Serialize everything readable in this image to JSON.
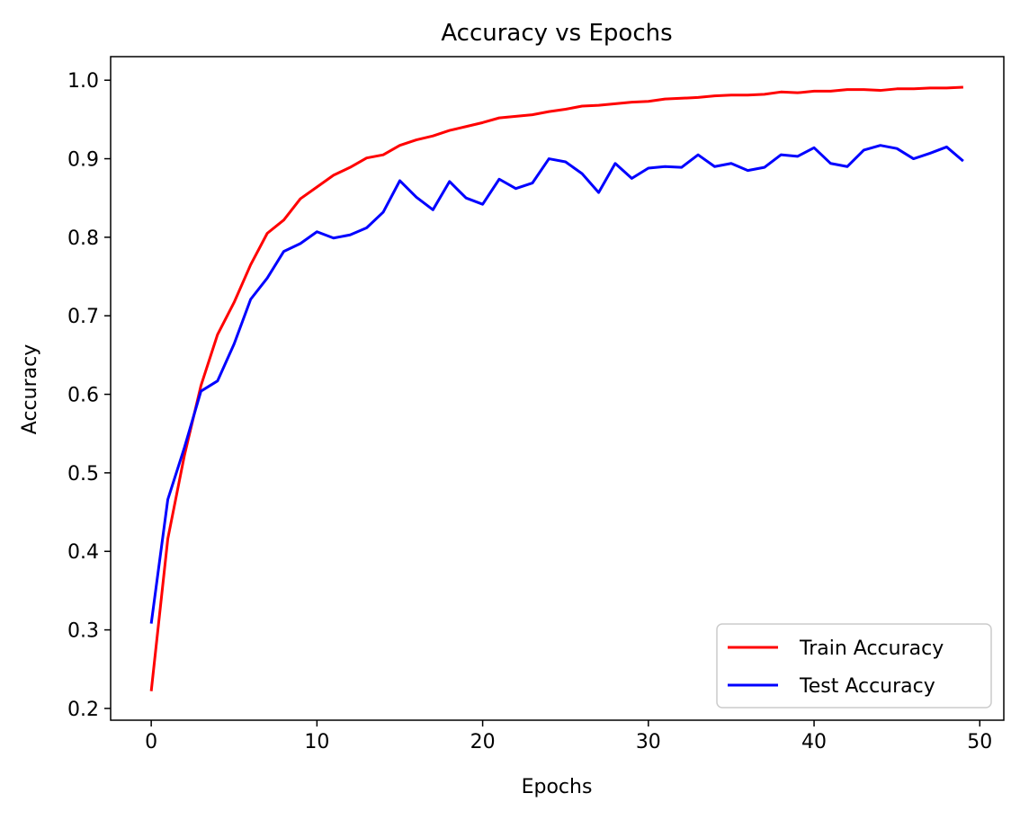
{
  "chart_data": {
    "type": "line",
    "title": "Accuracy vs Epochs",
    "xlabel": "Epochs",
    "ylabel": "Accuracy",
    "xlim": [
      -2.45,
      51.45
    ],
    "ylim": [
      0.185,
      1.03
    ],
    "xticks": [
      0,
      10,
      20,
      30,
      40,
      50
    ],
    "yticks": [
      0.2,
      0.3,
      0.4,
      0.5,
      0.6,
      0.7,
      0.8,
      0.9,
      1.0
    ],
    "ytick_labels": [
      "0.2",
      "0.3",
      "0.4",
      "0.5",
      "0.6",
      "0.7",
      "0.8",
      "0.9",
      "1.0"
    ],
    "grid": false,
    "legend_position": "lower-right",
    "x": [
      0,
      1,
      2,
      3,
      4,
      5,
      6,
      7,
      8,
      9,
      10,
      11,
      12,
      13,
      14,
      15,
      16,
      17,
      18,
      19,
      20,
      21,
      22,
      23,
      24,
      25,
      26,
      27,
      28,
      29,
      30,
      31,
      32,
      33,
      34,
      35,
      36,
      37,
      38,
      39,
      40,
      41,
      42,
      43,
      44,
      45,
      46,
      47,
      48,
      49
    ],
    "series": [
      {
        "name": "Train Accuracy",
        "color": "#ff0000",
        "values": [
          0.222,
          0.416,
          0.522,
          0.611,
          0.676,
          0.717,
          0.765,
          0.805,
          0.822,
          0.849,
          0.864,
          0.879,
          0.889,
          0.901,
          0.905,
          0.917,
          0.924,
          0.929,
          0.936,
          0.941,
          0.946,
          0.952,
          0.954,
          0.956,
          0.96,
          0.963,
          0.967,
          0.968,
          0.97,
          0.972,
          0.973,
          0.976,
          0.977,
          0.978,
          0.98,
          0.981,
          0.981,
          0.982,
          0.985,
          0.984,
          0.986,
          0.986,
          0.988,
          0.988,
          0.987,
          0.989,
          0.989,
          0.99,
          0.99,
          0.991
        ]
      },
      {
        "name": "Test Accuracy",
        "color": "#0000ff",
        "values": [
          0.308,
          0.466,
          0.532,
          0.604,
          0.617,
          0.664,
          0.721,
          0.748,
          0.782,
          0.792,
          0.807,
          0.799,
          0.803,
          0.812,
          0.832,
          0.872,
          0.851,
          0.835,
          0.871,
          0.85,
          0.842,
          0.874,
          0.862,
          0.869,
          0.9,
          0.896,
          0.881,
          0.857,
          0.894,
          0.875,
          0.888,
          0.89,
          0.889,
          0.905,
          0.89,
          0.894,
          0.885,
          0.889,
          0.905,
          0.903,
          0.914,
          0.894,
          0.89,
          0.911,
          0.917,
          0.913,
          0.9,
          0.907,
          0.915,
          0.897
        ]
      }
    ]
  }
}
